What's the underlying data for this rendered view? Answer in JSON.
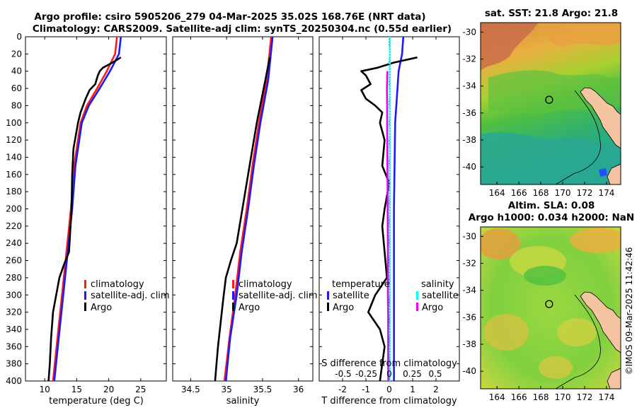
{
  "title_line1": "Argo profile: csiro 5905206_279 04-Mar-2025 35.02S 168.76E (NRT data)",
  "title_line2": "Climatology: CARS2009. Satellite-adj clim: synTS_20250304.nc (0.55d earlier)",
  "sst_title": "sat. SST: 21.8 Argo: 21.8",
  "sla_title1": "Altim. SLA: 0.08",
  "sla_title2": "Argo h1000: 0.034 h2000: NaN",
  "copyright": "©IMOS 09-Mar-2025 11:42:46",
  "colors": {
    "clim": "#ff1a1a",
    "sat": "#1a1aff",
    "argo": "#000000",
    "sal_sat": "#00ffff",
    "sal_argo": "#ee00ee"
  },
  "chart_data": [
    {
      "type": "line",
      "title": "",
      "xlabel": "temperature (deg C)",
      "ylabel": "",
      "xlim": [
        7,
        29
      ],
      "ylim": [
        400,
        0
      ],
      "xticks": [
        "10",
        "15",
        "20",
        "25"
      ],
      "yticks": [
        "0",
        "20",
        "40",
        "60",
        "80",
        "100",
        "120",
        "140",
        "160",
        "180",
        "200",
        "220",
        "240",
        "260",
        "280",
        "300",
        "320",
        "340",
        "360",
        "380",
        "400"
      ],
      "legend": [
        "climatology",
        "satellite-adj. clim",
        "Argo"
      ],
      "series": [
        {
          "name": "climatology",
          "color_key": "clim",
          "depth": [
            0,
            20,
            40,
            60,
            80,
            100,
            150,
            200,
            250,
            300,
            350,
            400
          ],
          "values": [
            21.3,
            21.0,
            19.7,
            18.2,
            16.6,
            15.6,
            14.6,
            14.1,
            13.4,
            12.7,
            12.0,
            11.3
          ]
        },
        {
          "name": "satellite-adj. clim",
          "color_key": "sat",
          "depth": [
            0,
            20,
            40,
            60,
            80,
            100,
            150,
            200,
            250,
            300,
            350,
            400
          ],
          "values": [
            21.9,
            21.6,
            20.2,
            18.6,
            16.9,
            15.8,
            14.8,
            14.3,
            13.6,
            12.9,
            12.2,
            11.5
          ]
        },
        {
          "name": "Argo",
          "color_key": "argo",
          "depth": [
            24,
            30,
            36,
            40,
            45,
            55,
            62,
            72,
            80,
            88,
            100,
            130,
            160,
            200,
            250,
            265,
            280,
            300,
            320,
            350,
            380,
            400
          ],
          "values": [
            21.9,
            20.6,
            19.1,
            18.6,
            18.3,
            17.9,
            17.0,
            16.4,
            16.0,
            15.6,
            15.2,
            14.5,
            14.3,
            14.2,
            13.8,
            13.0,
            12.3,
            11.8,
            11.3,
            11.0,
            10.8,
            10.6
          ]
        }
      ]
    },
    {
      "type": "line",
      "title": "",
      "xlabel": "salinity",
      "ylabel": "",
      "xlim": [
        34.25,
        36.2
      ],
      "ylim": [
        400,
        0
      ],
      "xticks": [
        "34.5",
        "35",
        "35.5",
        "36"
      ],
      "legend": [
        "climatology",
        "satellite-adj. clim",
        "Argo"
      ],
      "series": [
        {
          "name": "climatology",
          "color_key": "clim",
          "depth": [
            0,
            50,
            100,
            150,
            200,
            250,
            300,
            350,
            400
          ],
          "values": [
            35.62,
            35.56,
            35.45,
            35.36,
            35.28,
            35.19,
            35.12,
            35.04,
            34.97
          ]
        },
        {
          "name": "satellite-adj. clim",
          "color_key": "sat",
          "depth": [
            0,
            50,
            100,
            150,
            200,
            250,
            300,
            350,
            400
          ],
          "values": [
            35.64,
            35.58,
            35.47,
            35.38,
            35.3,
            35.21,
            35.14,
            35.05,
            34.99
          ]
        },
        {
          "name": "Argo",
          "color_key": "argo",
          "depth": [
            24,
            50,
            100,
            150,
            200,
            240,
            260,
            280,
            300,
            330,
            360,
            380,
            400
          ],
          "values": [
            35.6,
            35.54,
            35.42,
            35.32,
            35.22,
            35.14,
            35.06,
            34.99,
            34.96,
            34.92,
            34.88,
            34.86,
            34.84
          ]
        }
      ]
    },
    {
      "type": "line",
      "title": "",
      "xlabel": "T difference from climatology",
      "xlabel2": "S difference from climatology",
      "ylabel": "",
      "xlim": [
        -3,
        3
      ],
      "ylim": [
        400,
        0
      ],
      "xticks": [
        "-2",
        "-1",
        "0",
        "1",
        "2"
      ],
      "xticks2": [
        "-0.5",
        "-0.25",
        "0",
        "0.25",
        "0.5"
      ],
      "legend_temperature_title": "temperature",
      "legend_salinity_title": "salinity",
      "legend_temperature": [
        "satellite",
        "Argo"
      ],
      "legend_salinity": [
        "satellite",
        "Argo"
      ],
      "series": [
        {
          "name": "temperature satellite",
          "color_key": "sat",
          "depth": [
            0,
            20,
            40,
            100,
            200,
            300,
            400
          ],
          "values": [
            0.6,
            0.55,
            0.4,
            0.25,
            0.2,
            0.2,
            0.2
          ]
        },
        {
          "name": "temperature Argo",
          "color_key": "argo",
          "depth": [
            24,
            30,
            36,
            40,
            45,
            55,
            62,
            72,
            80,
            88,
            100,
            120,
            150,
            170,
            200,
            220,
            250,
            280,
            300,
            320,
            340,
            360,
            380,
            400
          ],
          "values": [
            1.2,
            0.2,
            -0.5,
            -1.2,
            -1.0,
            -0.8,
            -1.2,
            -1.0,
            -0.6,
            -0.3,
            -0.4,
            -0.2,
            -0.3,
            0.0,
            -0.2,
            -0.3,
            -0.2,
            -0.1,
            -0.6,
            -0.9,
            -0.4,
            -0.2,
            -0.3,
            -0.4
          ]
        },
        {
          "name": "salinity satellite",
          "color_key": "sal_sat",
          "depth": [
            0,
            400
          ],
          "values": [
            0.02,
            0.02
          ]
        },
        {
          "name": "salinity Argo",
          "color_key": "sal_argo",
          "depth": [
            40,
            60,
            80,
            100,
            150,
            200,
            250,
            300,
            320,
            350,
            380,
            400
          ],
          "values": [
            -0.08,
            -0.1,
            -0.09,
            -0.09,
            -0.08,
            -0.07,
            -0.06,
            -0.06,
            -0.05,
            -0.05,
            -0.05,
            -0.04
          ]
        }
      ]
    },
    {
      "type": "heatmap",
      "title": "sat. SST: 21.8 Argo: 21.8",
      "xlim": [
        162.5,
        175.3
      ],
      "ylim": [
        -41.3,
        -29.3
      ],
      "xticks": [
        "164",
        "166",
        "168",
        "170",
        "172",
        "174"
      ],
      "yticks": [
        "-30",
        "-32",
        "-34",
        "-36",
        "-38",
        "-40"
      ],
      "argo_position": {
        "lon": 168.76,
        "lat": -35.02
      }
    },
    {
      "type": "heatmap",
      "title": "Altim. SLA: 0.08",
      "xlim": [
        162.5,
        175.3
      ],
      "ylim": [
        -41.3,
        -29.3
      ],
      "xticks": [
        "164",
        "166",
        "168",
        "170",
        "172",
        "174"
      ],
      "yticks": [
        "-30",
        "-32",
        "-34",
        "-36",
        "-38",
        "-40"
      ],
      "argo_position": {
        "lon": 168.76,
        "lat": -35.02
      }
    }
  ]
}
